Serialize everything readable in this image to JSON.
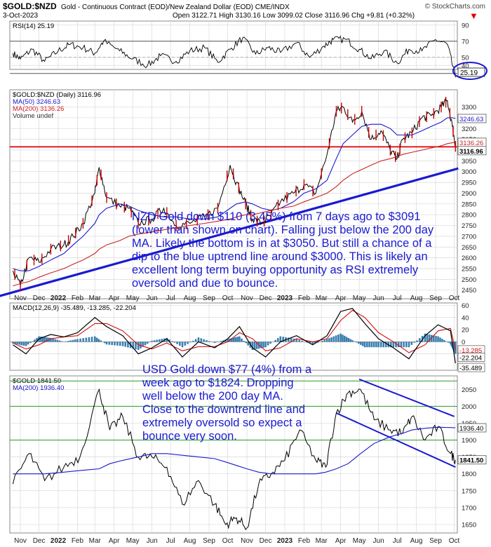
{
  "header": {
    "symbol": "$GOLD:$NZD",
    "description": "Gold - Continuous Contract (EOD)/New Zealand Dollar (EOD) CME/INDX",
    "date": "3-Oct-2023",
    "ohlc": "Open 3122.71 High 3130.16 Low 3099.02 Close 3116.96 Chg +9.81 (+0.32%)",
    "brand": "© StockCharts.com",
    "arrow": "▼"
  },
  "colors": {
    "price": "#000000",
    "ma50": "#1a1acc",
    "ma200": "#cc2222",
    "uptrend": "#1a1ad0",
    "annotation": "#1a1ad0",
    "support": "#dd0000",
    "macd_hist": "#3a7fb0",
    "grid": "#d9d9d9"
  },
  "annotations": {
    "nzd_note": [
      "NZD Gold down $110 (3.45%) from 7 days ago to $3091",
      "(lower than shown on chart). Falling just below the 200 day",
      "MA. Likely the bottom is in at $3050. But still a chance of a",
      "dip to the blue uptrend line around $3000. This is likely an",
      "excellent long term buying opportunity as RSI extremely",
      "oversold and due to bounce."
    ],
    "usd_note": [
      "USD Gold down $77 (4%) from a",
      "week ago to $1824. Dropping",
      "well below the 200 day MA.",
      "Close to the downtrend line and",
      "extremely oversold so expect a",
      "bounce very soon."
    ]
  },
  "chart_data": [
    {
      "type": "line",
      "panel": "rsi",
      "legend": [
        "RSI(14) 25.19"
      ],
      "ylim": [
        35,
        95
      ],
      "y_ticks": [
        40,
        50,
        70,
        90
      ],
      "reference_lines": [
        30,
        70
      ],
      "last_value_label": "25.19",
      "x": [
        "2021-10-20",
        "2021-11-01",
        "2021-11-20",
        "2021-12-10",
        "2022-01-01",
        "2022-01-20",
        "2022-02-10",
        "2022-03-01",
        "2022-03-15",
        "2022-04-10",
        "2022-05-01",
        "2022-05-25",
        "2022-06-15",
        "2022-07-10",
        "2022-08-01",
        "2022-08-25",
        "2022-09-15",
        "2022-10-05",
        "2022-10-25",
        "2022-11-15",
        "2022-12-05",
        "2022-12-25",
        "2023-01-20",
        "2023-02-10",
        "2023-03-05",
        "2023-03-20",
        "2023-04-10",
        "2023-05-01",
        "2023-05-20",
        "2023-06-10",
        "2023-07-01",
        "2023-07-20",
        "2023-08-10",
        "2023-09-01",
        "2023-09-20",
        "2023-10-03"
      ],
      "series": [
        {
          "values": [
            55,
            48,
            60,
            45,
            58,
            66,
            62,
            55,
            70,
            58,
            48,
            40,
            52,
            45,
            58,
            62,
            44,
            60,
            74,
            54,
            62,
            56,
            68,
            50,
            64,
            72,
            72,
            60,
            48,
            58,
            43,
            60,
            58,
            72,
            66,
            25.19
          ]
        }
      ]
    },
    {
      "type": "line",
      "panel": "nzd",
      "legend": [
        "$GOLD:$NZD (Daily) 3116.96",
        "MA(50) 3246.63",
        "MA(200) 3136.26",
        "Volume undef"
      ],
      "ylim": [
        2410,
        3380
      ],
      "y_ticks": [
        2450,
        2500,
        2550,
        2600,
        2650,
        2700,
        2750,
        2800,
        2850,
        2900,
        2950,
        3000,
        3050,
        3100,
        3150,
        3200,
        3250,
        3300
      ],
      "price_labels": [
        "3246.63",
        "3136.26",
        "3116.96"
      ],
      "support_line": 3115,
      "uptrend_line": {
        "x": [
          "2021-10-01",
          "2023-10-03"
        ],
        "y": [
          2425,
          3015
        ]
      },
      "x": [
        "2021-10-20",
        "2021-11-01",
        "2021-11-15",
        "2021-12-01",
        "2021-12-20",
        "2022-01-10",
        "2022-01-25",
        "2022-02-10",
        "2022-03-01",
        "2022-03-08",
        "2022-03-20",
        "2022-04-10",
        "2022-04-25",
        "2022-05-10",
        "2022-06-01",
        "2022-06-20",
        "2022-07-10",
        "2022-08-01",
        "2022-08-25",
        "2022-09-15",
        "2022-10-05",
        "2022-10-15",
        "2022-10-30",
        "2022-11-10",
        "2022-11-25",
        "2022-12-10",
        "2022-12-25",
        "2023-01-15",
        "2023-02-01",
        "2023-02-20",
        "2023-03-10",
        "2023-03-25",
        "2023-04-05",
        "2023-04-20",
        "2023-05-05",
        "2023-05-20",
        "2023-06-05",
        "2023-06-20",
        "2023-07-01",
        "2023-07-10",
        "2023-07-25",
        "2023-08-10",
        "2023-08-25",
        "2023-09-10",
        "2023-09-20",
        "2023-09-28",
        "2023-10-03"
      ],
      "series": [
        {
          "name": "$GOLD:$NZD",
          "values": [
            2540,
            2470,
            2600,
            2580,
            2640,
            2660,
            2700,
            2760,
            2900,
            3020,
            2880,
            2840,
            2830,
            2760,
            2780,
            2830,
            2750,
            2760,
            2790,
            2830,
            3030,
            2950,
            2850,
            2780,
            2760,
            2800,
            2860,
            2900,
            2940,
            2900,
            3080,
            3280,
            3300,
            3230,
            3280,
            3150,
            3190,
            3100,
            3060,
            3150,
            3180,
            3250,
            3260,
            3300,
            3330,
            3210,
            3117
          ]
        },
        {
          "name": "MA(50)",
          "values": [
            2550,
            2540,
            2540,
            2560,
            2590,
            2620,
            2660,
            2700,
            2760,
            2800,
            2830,
            2850,
            2840,
            2820,
            2800,
            2790,
            2790,
            2780,
            2780,
            2790,
            2830,
            2850,
            2860,
            2850,
            2830,
            2820,
            2830,
            2860,
            2900,
            2920,
            2960,
            3060,
            3130,
            3170,
            3210,
            3220,
            3220,
            3200,
            3170,
            3170,
            3170,
            3190,
            3210,
            3230,
            3250,
            3250,
            3247
          ]
        },
        {
          "name": "MA(200)",
          "values": [
            2470,
            2480,
            2490,
            2510,
            2530,
            2550,
            2570,
            2590,
            2620,
            2640,
            2660,
            2680,
            2700,
            2710,
            2720,
            2730,
            2740,
            2750,
            2760,
            2770,
            2780,
            2790,
            2800,
            2800,
            2810,
            2820,
            2830,
            2840,
            2860,
            2880,
            2900,
            2930,
            2960,
            2990,
            3010,
            3030,
            3050,
            3060,
            3070,
            3080,
            3090,
            3100,
            3110,
            3120,
            3130,
            3134,
            3136
          ]
        }
      ]
    },
    {
      "type": "line",
      "panel": "macd",
      "legend": [
        "MACD(12,26,9) -35.489, -13.285, -22.204"
      ],
      "ylim": [
        -47,
        64
      ],
      "y_ticks": [
        -20,
        0,
        20,
        40,
        60
      ],
      "value_labels": [
        "-13.285",
        "-22.204",
        "-35.489"
      ],
      "x": [
        "2021-10-20",
        "2021-11-10",
        "2021-12-01",
        "2021-12-20",
        "2022-01-10",
        "2022-02-01",
        "2022-03-01",
        "2022-03-20",
        "2022-04-15",
        "2022-05-10",
        "2022-06-01",
        "2022-06-25",
        "2022-07-20",
        "2022-08-15",
        "2022-09-10",
        "2022-10-01",
        "2022-10-20",
        "2022-11-10",
        "2022-12-01",
        "2022-12-25",
        "2023-01-20",
        "2023-02-15",
        "2023-03-10",
        "2023-04-01",
        "2023-04-20",
        "2023-05-10",
        "2023-06-01",
        "2023-06-25",
        "2023-07-20",
        "2023-08-15",
        "2023-09-05",
        "2023-09-25",
        "2023-10-03"
      ],
      "series": [
        {
          "name": "MACD",
          "values": [
            -5,
            -20,
            5,
            12,
            8,
            15,
            40,
            25,
            10,
            -20,
            -10,
            5,
            -25,
            0,
            -10,
            5,
            25,
            -10,
            -25,
            0,
            10,
            -5,
            10,
            50,
            55,
            30,
            5,
            -10,
            -28,
            10,
            28,
            18,
            -35.489
          ]
        },
        {
          "name": "Signal",
          "values": [
            -2,
            -12,
            -5,
            5,
            8,
            10,
            30,
            30,
            18,
            -5,
            -12,
            -2,
            -15,
            -8,
            -8,
            0,
            15,
            5,
            -15,
            -10,
            5,
            0,
            5,
            35,
            52,
            40,
            15,
            0,
            -18,
            -5,
            18,
            22,
            -13.285
          ]
        }
      ]
    },
    {
      "type": "line",
      "panel": "usd",
      "legend": [
        "$GOLD 1841.50",
        "MA(200) 1936.40"
      ],
      "ylim": [
        1625,
        2090
      ],
      "y_ticks": [
        1650,
        1700,
        1750,
        1800,
        1850,
        1900,
        1950,
        2000,
        2050
      ],
      "price_labels": [
        "1936.40",
        "1841.50"
      ],
      "horizontal_lines": [
        2075,
        2000,
        1900
      ],
      "downtrend_channel": {
        "upper": {
          "x": [
            "2023-05-01",
            "2023-10-01"
          ],
          "y": [
            2080,
            1970
          ]
        },
        "lower": {
          "x": [
            "2023-03-25",
            "2023-10-03"
          ],
          "y": [
            1980,
            1820
          ]
        }
      },
      "x": [
        "2021-10-20",
        "2021-11-15",
        "2021-12-10",
        "2022-01-10",
        "2022-02-05",
        "2022-03-08",
        "2022-03-25",
        "2022-04-15",
        "2022-05-10",
        "2022-06-01",
        "2022-06-25",
        "2022-07-20",
        "2022-08-15",
        "2022-09-10",
        "2022-09-28",
        "2022-10-15",
        "2022-11-01",
        "2022-11-20",
        "2022-12-10",
        "2023-01-01",
        "2023-01-25",
        "2023-02-20",
        "2023-03-08",
        "2023-03-25",
        "2023-04-13",
        "2023-05-03",
        "2023-05-25",
        "2023-06-20",
        "2023-07-10",
        "2023-07-25",
        "2023-08-15",
        "2023-09-05",
        "2023-09-25",
        "2023-10-03"
      ],
      "series": [
        {
          "name": "$GOLD",
          "values": [
            1770,
            1860,
            1780,
            1820,
            1850,
            2050,
            1930,
            1970,
            1850,
            1850,
            1820,
            1710,
            1780,
            1710,
            1650,
            1670,
            1640,
            1770,
            1800,
            1840,
            1930,
            1840,
            1820,
            1980,
            2040,
            2050,
            1960,
            1930,
            1920,
            1970,
            1900,
            1940,
            1860,
            1841.5
          ]
        },
        {
          "name": "MA(200)",
          "values": [
            1800,
            1800,
            1800,
            1805,
            1810,
            1815,
            1830,
            1840,
            1850,
            1860,
            1860,
            1855,
            1850,
            1845,
            1835,
            1825,
            1815,
            1805,
            1800,
            1800,
            1800,
            1800,
            1805,
            1815,
            1830,
            1860,
            1890,
            1910,
            1920,
            1930,
            1935,
            1938,
            1937,
            1936.4
          ]
        }
      ]
    }
  ],
  "x_axis": {
    "labels": [
      {
        "x": "2021-11-01",
        "label": "Nov"
      },
      {
        "x": "2021-12-01",
        "label": "Dec"
      },
      {
        "x": "2022-01-01",
        "label": "2022",
        "bold": true
      },
      {
        "x": "2022-02-01",
        "label": "Feb"
      },
      {
        "x": "2022-03-01",
        "label": "Mar"
      },
      {
        "x": "2022-04-01",
        "label": "Apr"
      },
      {
        "x": "2022-05-01",
        "label": "May"
      },
      {
        "x": "2022-06-01",
        "label": "Jun"
      },
      {
        "x": "2022-07-01",
        "label": "Jul"
      },
      {
        "x": "2022-08-01",
        "label": "Aug"
      },
      {
        "x": "2022-09-01",
        "label": "Sep"
      },
      {
        "x": "2022-10-01",
        "label": "Oct"
      },
      {
        "x": "2022-11-01",
        "label": "Nov"
      },
      {
        "x": "2022-12-01",
        "label": "Dec"
      },
      {
        "x": "2023-01-01",
        "label": "2023",
        "bold": true
      },
      {
        "x": "2023-02-01",
        "label": "Feb"
      },
      {
        "x": "2023-03-01",
        "label": "Mar"
      },
      {
        "x": "2023-04-01",
        "label": "Apr"
      },
      {
        "x": "2023-05-01",
        "label": "May"
      },
      {
        "x": "2023-06-01",
        "label": "Jun"
      },
      {
        "x": "2023-07-01",
        "label": "Jul"
      },
      {
        "x": "2023-08-01",
        "label": "Aug"
      },
      {
        "x": "2023-09-01",
        "label": "Sep"
      },
      {
        "x": "2023-10-01",
        "label": "Oct"
      }
    ],
    "range": [
      "2021-10-15",
      "2023-10-06"
    ]
  }
}
